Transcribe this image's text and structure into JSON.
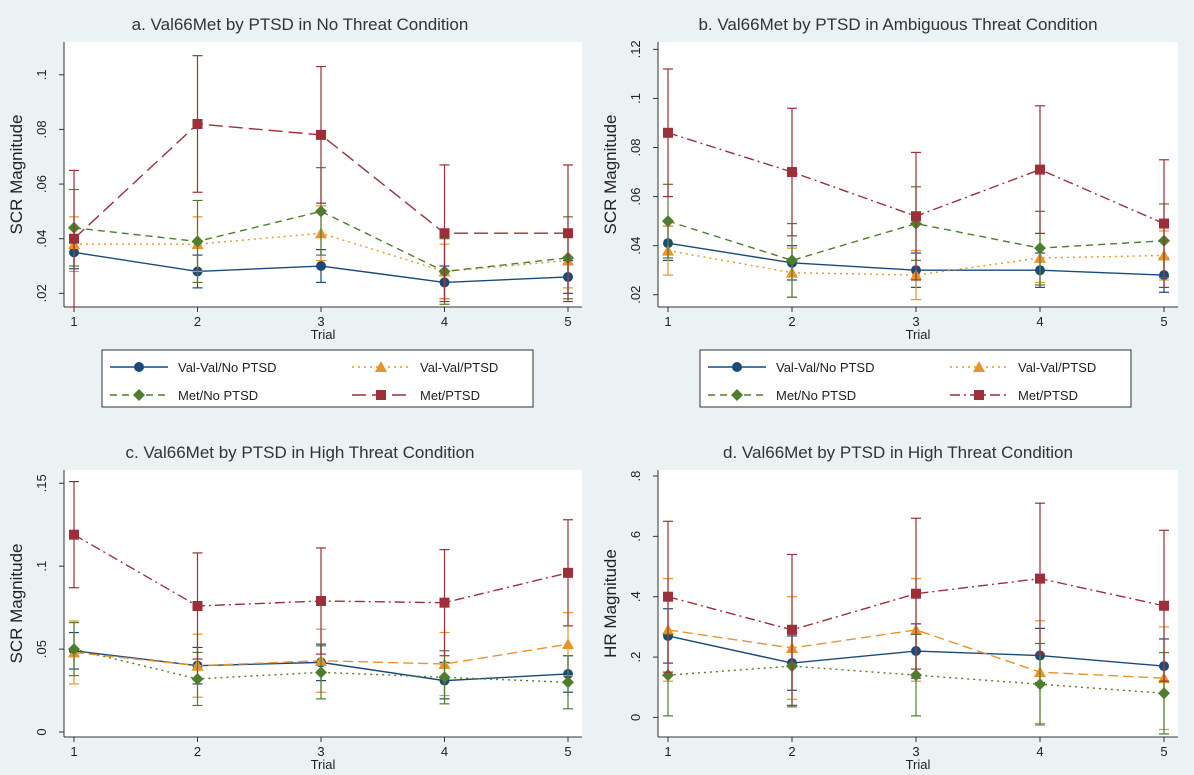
{
  "colors": {
    "background": "#eaf2f3",
    "val_val_no_ptsd": "#1a4a7a",
    "val_val_ptsd": "#e8932c",
    "met_no_ptsd": "#4f7d2e",
    "met_ptsd": "#9c2f39"
  },
  "legend_labels": {
    "vv_no": "Val-Val/No PTSD",
    "vv_ptsd": "Val-Val/PTSD",
    "met_no": "Met/No PTSD",
    "met_ptsd": "Met/PTSD"
  },
  "chart_data": [
    {
      "type": "line",
      "title": "a. Val66Met by PTSD in No Threat Condition",
      "xlabel": "Trial",
      "ylabel": "SCR Magnitude",
      "x": [
        1,
        2,
        3,
        4,
        5
      ],
      "xticks": [
        "1",
        "2",
        "3",
        "4",
        "5"
      ],
      "ylim": [
        0.015,
        0.112
      ],
      "yticks": [
        0.02,
        0.04,
        0.06,
        0.08,
        0.1
      ],
      "ytick_labels": [
        ".02",
        ".04",
        ".06",
        ".08",
        ".1"
      ],
      "legend": true,
      "series": [
        {
          "name": "Val-Val/No PTSD",
          "color": "#1a4a7a",
          "marker": "circle",
          "dash": "",
          "values": [
            0.035,
            0.028,
            0.03,
            0.024,
            0.026
          ],
          "ci_low": [
            0.029,
            0.022,
            0.024,
            0.018,
            0.02
          ],
          "ci_high": [
            0.041,
            0.034,
            0.036,
            0.03,
            0.032
          ]
        },
        {
          "name": "Val-Val/PTSD",
          "color": "#e8932c",
          "marker": "triangle",
          "dash": "2 4",
          "values": [
            0.038,
            0.038,
            0.042,
            0.028,
            0.032
          ],
          "ci_low": [
            0.028,
            0.028,
            0.032,
            0.018,
            0.022
          ],
          "ci_high": [
            0.048,
            0.048,
            0.052,
            0.038,
            0.042
          ]
        },
        {
          "name": "Met/No PTSD",
          "color": "#4f7d2e",
          "marker": "diamond",
          "dash": "7 5",
          "values": [
            0.044,
            0.039,
            0.05,
            0.028,
            0.033
          ],
          "ci_low": [
            0.03,
            0.024,
            0.034,
            0.016,
            0.018
          ],
          "ci_high": [
            0.058,
            0.054,
            0.066,
            0.04,
            0.048
          ]
        },
        {
          "name": "Met/PTSD",
          "color": "#9c2f39",
          "marker": "square",
          "dash": "14 6",
          "values": [
            0.04,
            0.082,
            0.078,
            0.042,
            0.042
          ],
          "ci_low": [
            0.015,
            0.057,
            0.053,
            0.017,
            0.017
          ],
          "ci_high": [
            0.065,
            0.107,
            0.103,
            0.067,
            0.067
          ]
        }
      ]
    },
    {
      "type": "line",
      "title": "b. Val66Met by PTSD in Ambiguous Threat Condition",
      "xlabel": "Trial",
      "ylabel": "SCR Magnitude",
      "x": [
        1,
        2,
        3,
        4,
        5
      ],
      "xticks": [
        "1",
        "2",
        "3",
        "4",
        "5"
      ],
      "ylim": [
        0.015,
        0.123
      ],
      "yticks": [
        0.02,
        0.04,
        0.06,
        0.08,
        0.1,
        0.12
      ],
      "ytick_labels": [
        ".02",
        ".04",
        ".06",
        ".08",
        ".1",
        ".12"
      ],
      "legend": true,
      "series": [
        {
          "name": "Val-Val/No PTSD",
          "color": "#1a4a7a",
          "marker": "circle",
          "dash": "",
          "values": [
            0.041,
            0.033,
            0.03,
            0.03,
            0.028
          ],
          "ci_low": [
            0.034,
            0.026,
            0.023,
            0.023,
            0.021
          ],
          "ci_high": [
            0.048,
            0.04,
            0.037,
            0.037,
            0.035
          ]
        },
        {
          "name": "Val-Val/PTSD",
          "color": "#e8932c",
          "marker": "triangle",
          "dash": "2 4",
          "values": [
            0.038,
            0.029,
            0.028,
            0.035,
            0.036
          ],
          "ci_low": [
            0.028,
            0.019,
            0.018,
            0.025,
            0.026
          ],
          "ci_high": [
            0.048,
            0.039,
            0.038,
            0.045,
            0.046
          ]
        },
        {
          "name": "Met/No PTSD",
          "color": "#4f7d2e",
          "marker": "diamond",
          "dash": "7 5",
          "values": [
            0.05,
            0.034,
            0.049,
            0.039,
            0.042
          ],
          "ci_low": [
            0.035,
            0.019,
            0.034,
            0.024,
            0.027
          ],
          "ci_high": [
            0.065,
            0.049,
            0.064,
            0.054,
            0.057
          ]
        },
        {
          "name": "Met/PTSD",
          "color": "#9c2f39",
          "marker": "square",
          "dash": "10 4 2 4",
          "values": [
            0.086,
            0.07,
            0.052,
            0.071,
            0.049
          ],
          "ci_low": [
            0.06,
            0.044,
            0.026,
            0.045,
            0.023
          ],
          "ci_high": [
            0.112,
            0.096,
            0.078,
            0.097,
            0.075
          ]
        }
      ]
    },
    {
      "type": "line",
      "title": "c. Val66Met by PTSD in High Threat Condition",
      "xlabel": "Trial",
      "ylabel": "SCR Magnitude",
      "x": [
        1,
        2,
        3,
        4,
        5
      ],
      "xticks": [
        "1",
        "2",
        "3",
        "4",
        "5"
      ],
      "ylim": [
        -0.003,
        0.158
      ],
      "yticks": [
        0,
        0.05,
        0.1,
        0.15
      ],
      "ytick_labels": [
        "0",
        ".05",
        ".1",
        ".15"
      ],
      "legend": false,
      "series": [
        {
          "name": "Val-Val/No PTSD",
          "color": "#1a4a7a",
          "marker": "circle",
          "dash": "",
          "values": [
            0.049,
            0.04,
            0.042,
            0.031,
            0.035
          ],
          "ci_low": [
            0.038,
            0.029,
            0.031,
            0.02,
            0.024
          ],
          "ci_high": [
            0.06,
            0.051,
            0.053,
            0.042,
            0.046
          ]
        },
        {
          "name": "Val-Val/PTSD",
          "color": "#e8932c",
          "marker": "triangle",
          "dash": "10 5",
          "values": [
            0.048,
            0.04,
            0.043,
            0.041,
            0.053
          ],
          "ci_low": [
            0.029,
            0.021,
            0.024,
            0.022,
            0.034
          ],
          "ci_high": [
            0.067,
            0.059,
            0.062,
            0.06,
            0.072
          ]
        },
        {
          "name": "Met/No PTSD",
          "color": "#4f7d2e",
          "marker": "diamond",
          "dash": "2 4",
          "values": [
            0.05,
            0.032,
            0.036,
            0.033,
            0.03
          ],
          "ci_low": [
            0.034,
            0.016,
            0.02,
            0.017,
            0.014
          ],
          "ci_high": [
            0.066,
            0.048,
            0.052,
            0.049,
            0.046
          ]
        },
        {
          "name": "Met/PTSD",
          "color": "#9c2f39",
          "marker": "square",
          "dash": "10 4 2 4",
          "values": [
            0.119,
            0.076,
            0.079,
            0.078,
            0.096
          ],
          "ci_low": [
            0.087,
            0.044,
            0.047,
            0.046,
            0.064
          ],
          "ci_high": [
            0.151,
            0.108,
            0.111,
            0.11,
            0.128
          ]
        }
      ]
    },
    {
      "type": "line",
      "title": "d. Val66Met by PTSD in High Threat Condition",
      "xlabel": "Trial",
      "ylabel": "HR Magnitude",
      "x": [
        1,
        2,
        3,
        4,
        5
      ],
      "xticks": [
        "1",
        "2",
        "3",
        "4",
        "5"
      ],
      "ylim": [
        -0.065,
        0.82
      ],
      "yticks": [
        0,
        0.2,
        0.4,
        0.6,
        0.8
      ],
      "ytick_labels": [
        "0",
        ".2",
        ".4",
        ".6",
        ".8"
      ],
      "legend": false,
      "series": [
        {
          "name": "Val-Val/No PTSD",
          "color": "#1a4a7a",
          "marker": "circle",
          "dash": "",
          "values": [
            0.27,
            0.18,
            0.22,
            0.205,
            0.17
          ],
          "ci_low": [
            0.18,
            0.09,
            0.13,
            0.115,
            0.08
          ],
          "ci_high": [
            0.36,
            0.27,
            0.31,
            0.295,
            0.26
          ]
        },
        {
          "name": "Val-Val/PTSD",
          "color": "#e8932c",
          "marker": "triangle",
          "dash": "10 5",
          "values": [
            0.29,
            0.23,
            0.29,
            0.15,
            0.13
          ],
          "ci_low": [
            0.12,
            0.06,
            0.12,
            -0.02,
            -0.04
          ],
          "ci_high": [
            0.46,
            0.4,
            0.46,
            0.32,
            0.3
          ]
        },
        {
          "name": "Met/No PTSD",
          "color": "#4f7d2e",
          "marker": "diamond",
          "dash": "2 4",
          "values": [
            0.14,
            0.17,
            0.14,
            0.11,
            0.08
          ],
          "ci_low": [
            0.005,
            0.035,
            0.005,
            -0.025,
            -0.055
          ],
          "ci_high": [
            0.275,
            0.305,
            0.275,
            0.245,
            0.215
          ]
        },
        {
          "name": "Met/PTSD",
          "color": "#9c2f39",
          "marker": "square",
          "dash": "10 4 2 4",
          "values": [
            0.4,
            0.29,
            0.41,
            0.46,
            0.37
          ],
          "ci_low": [
            0.15,
            0.04,
            0.16,
            0.21,
            0.12
          ],
          "ci_high": [
            0.65,
            0.54,
            0.66,
            0.71,
            0.62
          ]
        }
      ]
    }
  ]
}
